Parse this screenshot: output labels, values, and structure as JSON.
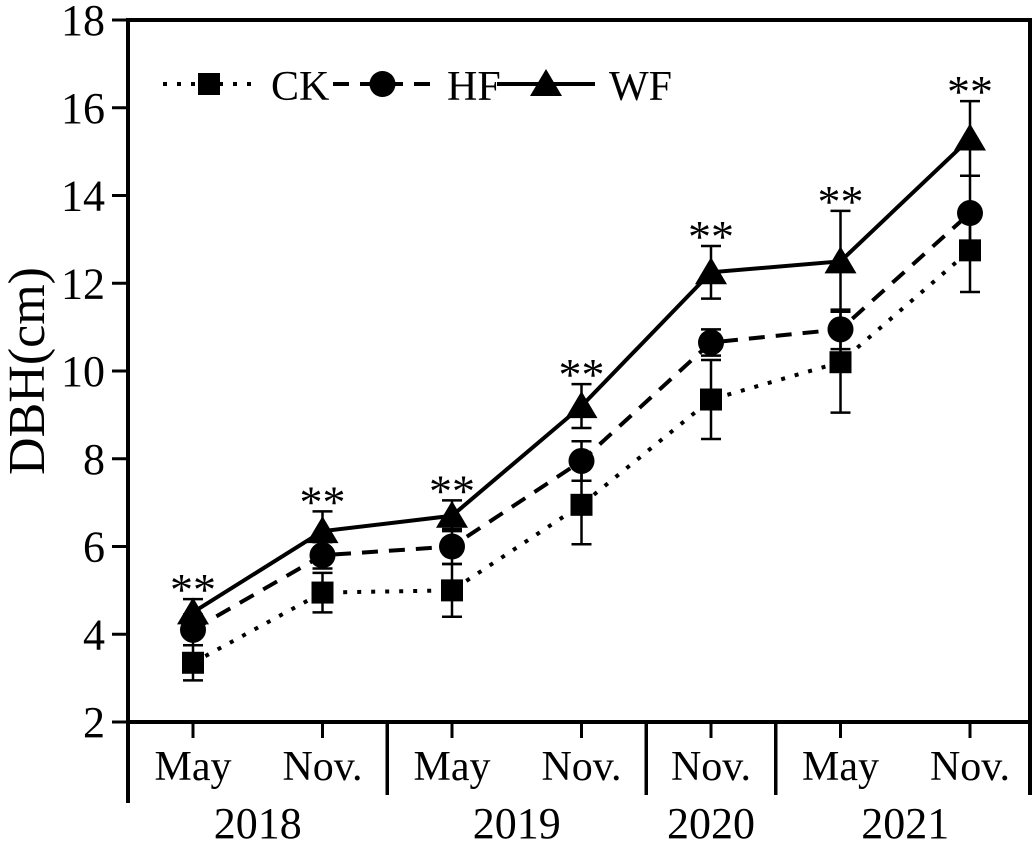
{
  "figure": {
    "background_color": "#ffffff",
    "ink_color": "#000000"
  },
  "chart_data": {
    "type": "line",
    "title": "",
    "xlabel": "",
    "ylabel": "DBH(cm)",
    "ylim": [
      2,
      18
    ],
    "yticks": [
      2,
      4,
      6,
      8,
      10,
      12,
      14,
      16,
      18
    ],
    "grid": false,
    "error_bars": true,
    "categories": [
      "May 2018",
      "Nov. 2018",
      "May 2019",
      "Nov. 2019",
      "Nov. 2020",
      "May 2021",
      "Nov. 2021"
    ],
    "month_tick_labels": [
      "May",
      "Nov.",
      "May",
      "Nov.",
      "Nov.",
      "May",
      "Nov."
    ],
    "year_groups": [
      {
        "label": "2018",
        "month_indices": [
          0,
          1
        ]
      },
      {
        "label": "2019",
        "month_indices": [
          2,
          3
        ]
      },
      {
        "label": "2020",
        "month_indices": [
          4
        ]
      },
      {
        "label": "2021",
        "month_indices": [
          5,
          6
        ]
      }
    ],
    "series": [
      {
        "name": "CK",
        "marker": "square",
        "line_style": "dotted",
        "values": [
          3.35,
          4.95,
          5.0,
          6.95,
          9.35,
          10.2,
          12.75
        ],
        "errors": [
          0.4,
          0.45,
          0.6,
          0.9,
          0.9,
          1.15,
          0.95
        ]
      },
      {
        "name": "HF",
        "marker": "circle",
        "line_style": "dashed",
        "values": [
          4.1,
          5.8,
          6.0,
          7.95,
          10.65,
          10.95,
          13.6
        ],
        "errors": [
          0.35,
          0.3,
          0.4,
          0.45,
          0.3,
          0.45,
          0.85
        ]
      },
      {
        "name": "WF",
        "marker": "triangle",
        "line_style": "solid",
        "values": [
          4.5,
          6.35,
          6.7,
          9.2,
          12.25,
          12.5,
          15.3
        ],
        "errors": [
          0.3,
          0.45,
          0.35,
          0.5,
          0.6,
          1.15,
          0.85
        ]
      }
    ],
    "significance": {
      "symbol": "**",
      "applies_to_series": "WF",
      "category_indices": [
        0,
        1,
        2,
        3,
        4,
        5,
        6
      ]
    },
    "legend": {
      "position": "top-left-inside",
      "entries": [
        "CK",
        "HF",
        "WF"
      ]
    }
  }
}
